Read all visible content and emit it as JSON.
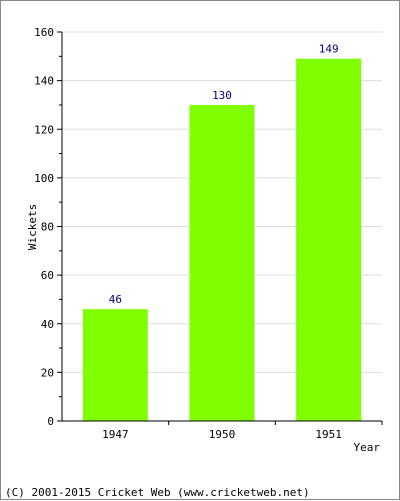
{
  "chart_data": {
    "type": "bar",
    "categories": [
      "1947",
      "1950",
      "1951"
    ],
    "values": [
      46,
      130,
      149
    ],
    "xlabel": "Year",
    "ylabel": "Wickets",
    "ylim": [
      0,
      160
    ],
    "yticks": [
      0,
      20,
      40,
      60,
      80,
      100,
      120,
      140,
      160
    ],
    "grid": true,
    "bar_color": "#80ff00",
    "data_label_color": "#000080"
  },
  "footer": {
    "credit": "(C) 2001-2015 Cricket Web (www.cricketweb.net)"
  }
}
